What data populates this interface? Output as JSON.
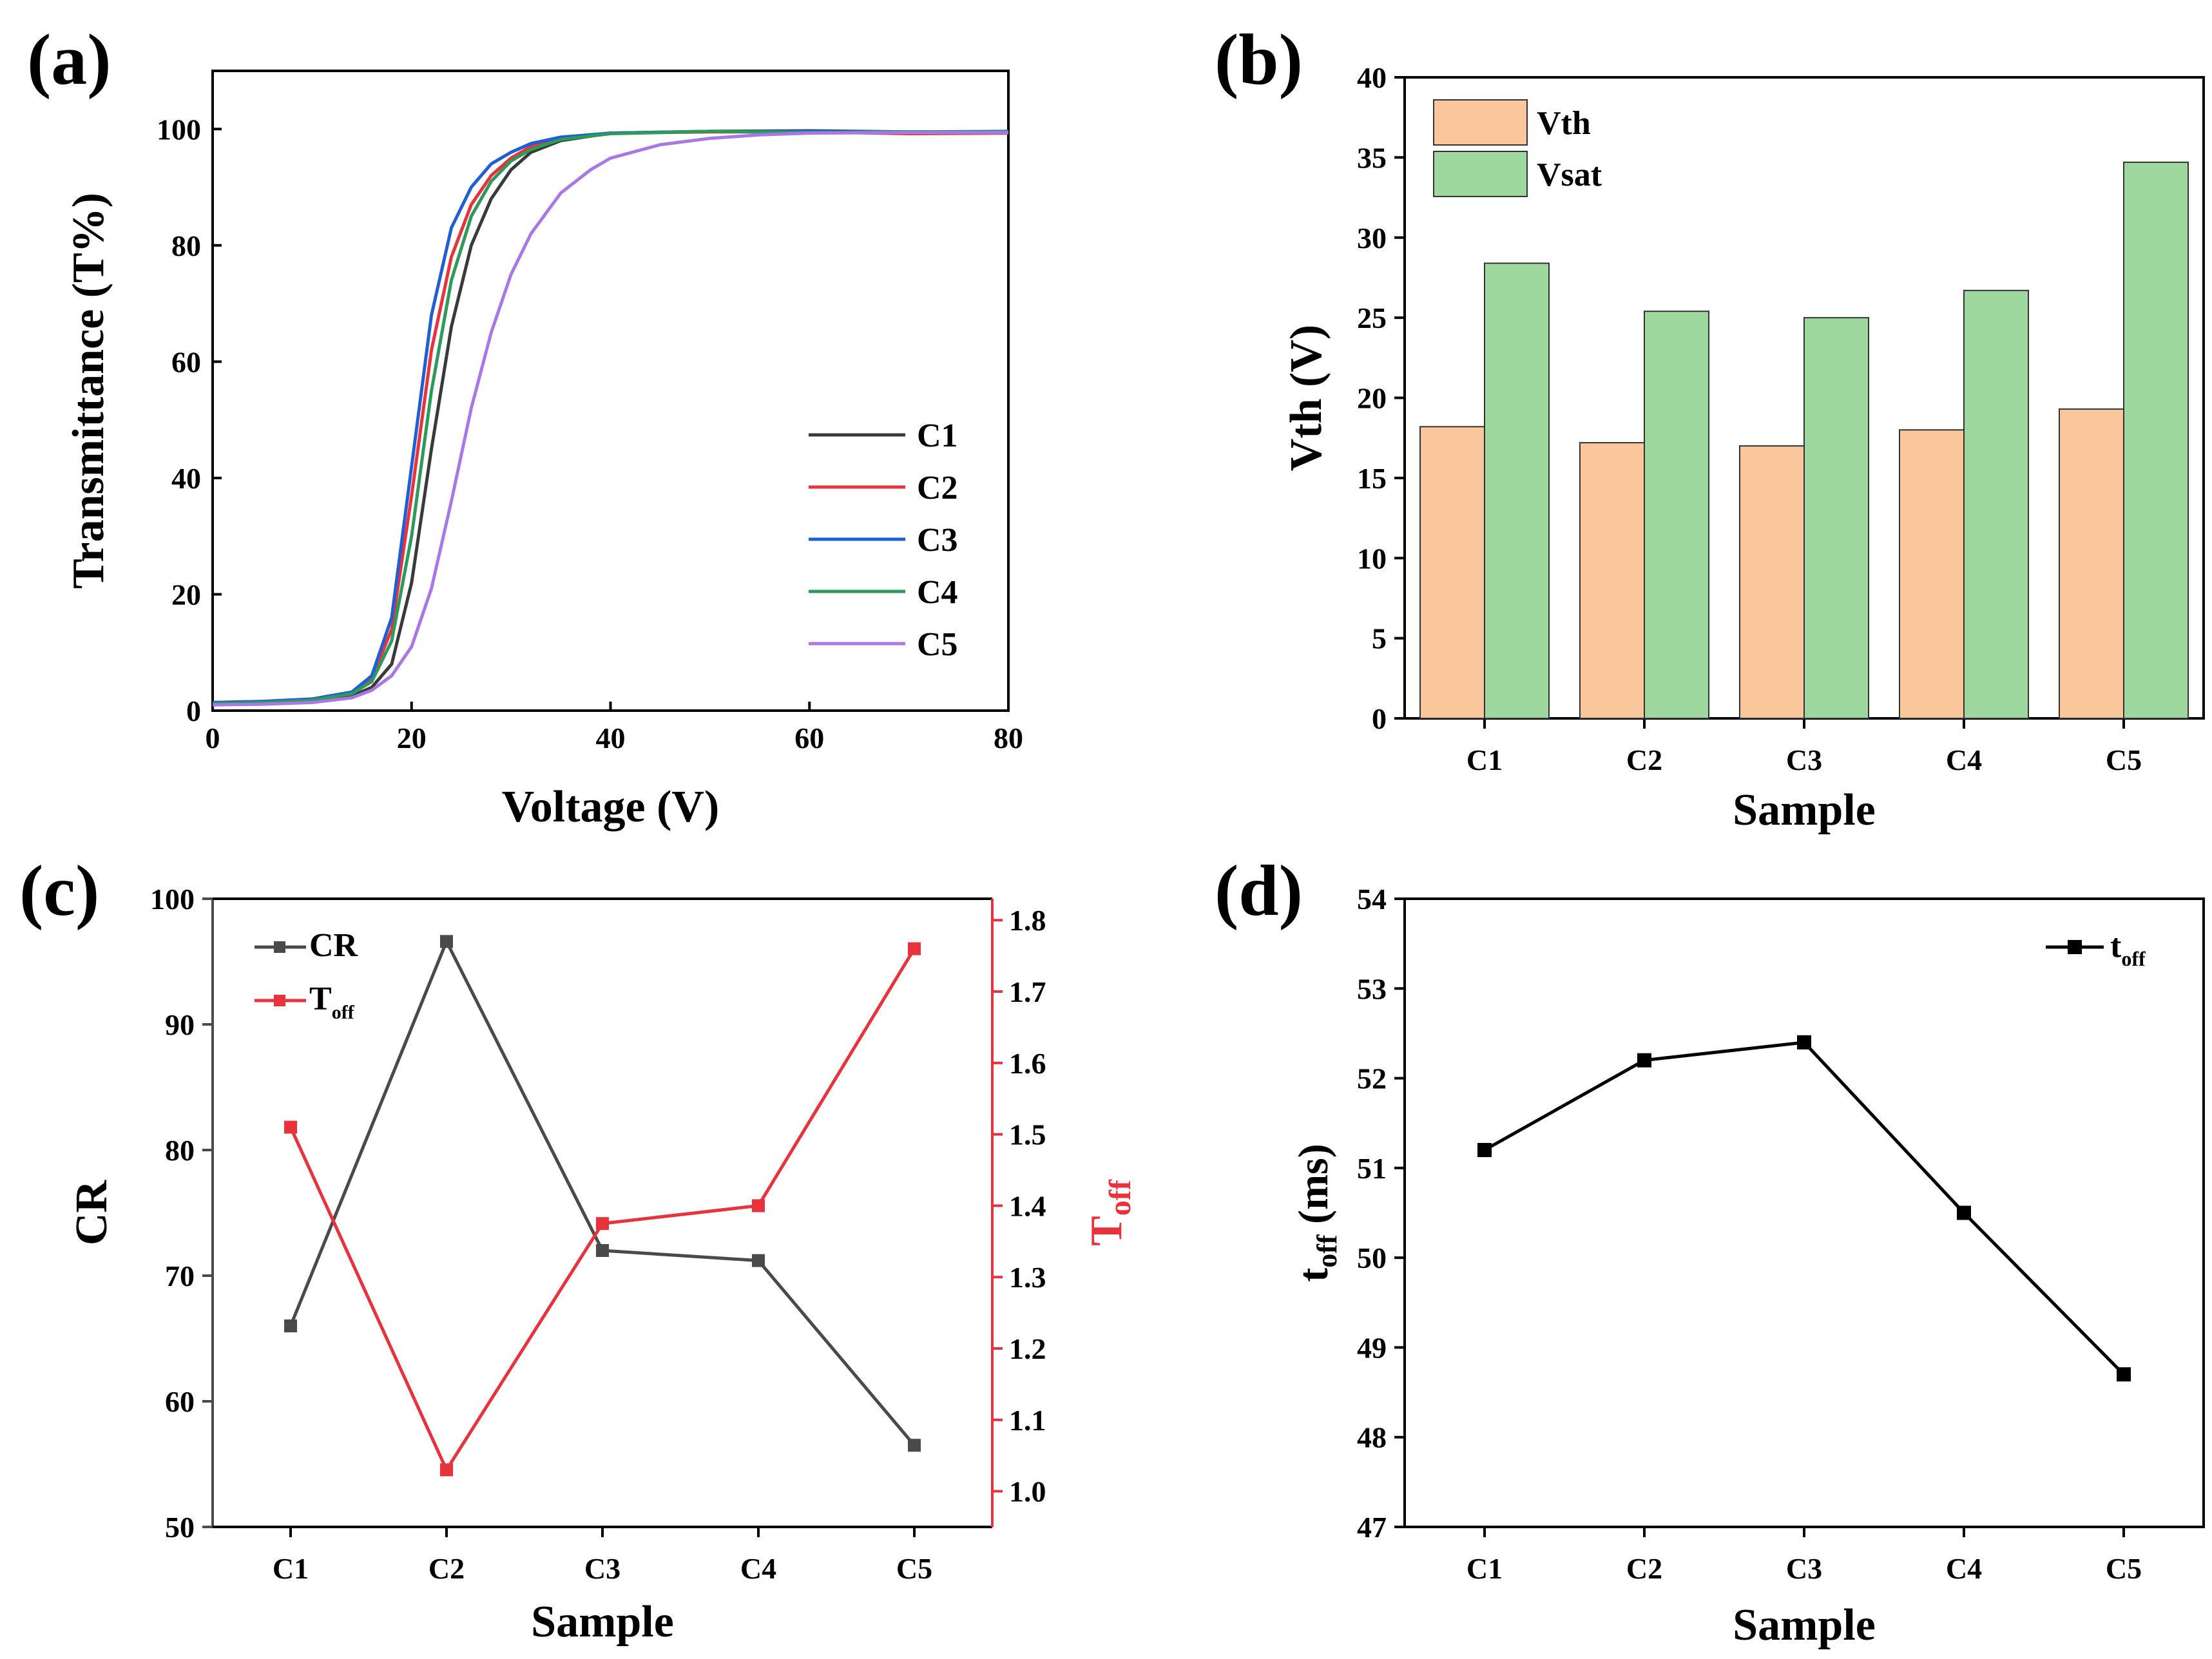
{
  "chart_data": [
    {
      "panel": "(a)",
      "type": "line",
      "xlabel": "Voltage (V)",
      "ylabel": "Transmittance (T%)",
      "xlim": [
        0,
        80
      ],
      "ylim": [
        0,
        110
      ],
      "xticks": [
        0,
        20,
        40,
        60,
        80
      ],
      "yticks": [
        0,
        20,
        40,
        60,
        80,
        100
      ],
      "legend_position": "bottom-right",
      "series": [
        {
          "name": "C1",
          "color": "#3a3a3a",
          "x": [
            0,
            5,
            10,
            14,
            16,
            18,
            20,
            22,
            24,
            26,
            28,
            30,
            32,
            35,
            40,
            50,
            60,
            70,
            80
          ],
          "y": [
            1,
            1.2,
            1.6,
            2.5,
            4,
            8,
            22,
            45,
            66,
            80,
            88,
            93,
            96,
            98,
            99.3,
            99.6,
            99.7,
            99.5,
            99.5
          ]
        },
        {
          "name": "C2",
          "color": "#e8323c",
          "x": [
            0,
            5,
            10,
            14,
            16,
            18,
            20,
            22,
            24,
            26,
            28,
            30,
            32,
            35,
            40,
            50,
            60,
            70,
            80
          ],
          "y": [
            1.3,
            1.5,
            1.9,
            3,
            5.5,
            14,
            37,
            62,
            78,
            87,
            92,
            95,
            97,
            98.5,
            99.3,
            99.5,
            99.5,
            99.2,
            99.3
          ]
        },
        {
          "name": "C3",
          "color": "#1f5fd6",
          "x": [
            0,
            5,
            10,
            14,
            16,
            18,
            20,
            22,
            24,
            26,
            28,
            30,
            32,
            35,
            40,
            50,
            60,
            70,
            80
          ],
          "y": [
            1.4,
            1.6,
            2,
            3.2,
            6,
            16,
            42,
            68,
            83,
            90,
            94,
            96,
            97.5,
            98.6,
            99.3,
            99.6,
            99.6,
            99.5,
            99.6
          ]
        },
        {
          "name": "C4",
          "color": "#2e9a5a",
          "x": [
            0,
            5,
            10,
            14,
            16,
            18,
            20,
            22,
            24,
            26,
            28,
            30,
            32,
            35,
            40,
            50,
            60,
            70,
            80
          ],
          "y": [
            1.2,
            1.4,
            1.8,
            2.9,
            5,
            12,
            30,
            55,
            74,
            85,
            91,
            94.5,
            96.5,
            98.2,
            99.2,
            99.6,
            99.4,
            99.5,
            99.5
          ]
        },
        {
          "name": "C5",
          "color": "#a878e6",
          "x": [
            0,
            5,
            10,
            14,
            16,
            18,
            20,
            22,
            24,
            26,
            28,
            30,
            32,
            35,
            38,
            40,
            45,
            50,
            55,
            60,
            70,
            80
          ],
          "y": [
            1,
            1.1,
            1.4,
            2.2,
            3.5,
            6,
            11,
            21,
            36,
            52,
            65,
            75,
            82,
            89,
            93,
            95,
            97.3,
            98.4,
            99,
            99.3,
            99.4,
            99.4
          ]
        }
      ]
    },
    {
      "panel": "(b)",
      "type": "bar",
      "xlabel": "Sample",
      "ylabel": "Vth (V)",
      "ylim": [
        0,
        40
      ],
      "yticks": [
        0,
        5,
        10,
        15,
        20,
        25,
        30,
        35,
        40
      ],
      "categories": [
        "C1",
        "C2",
        "C3",
        "C4",
        "C5"
      ],
      "legend_position": "top-left",
      "series": [
        {
          "name": "Vth",
          "color": "#f9c79b",
          "values": [
            18.2,
            17.2,
            17.0,
            18.0,
            19.3
          ]
        },
        {
          "name": "Vsat",
          "color": "#9fd89e",
          "values": [
            28.4,
            25.4,
            25.0,
            26.7,
            34.7
          ]
        }
      ]
    },
    {
      "panel": "(c)",
      "type": "line",
      "xlabel": "Sample",
      "ylabel": "CR",
      "ylabel_right": "T",
      "ylabel_right_sub": "off",
      "categories": [
        "C1",
        "C2",
        "C3",
        "C4",
        "C5"
      ],
      "ylim": [
        50,
        100
      ],
      "yticks": [
        50,
        60,
        70,
        80,
        90,
        100
      ],
      "ylim_right": [
        0.95,
        1.83
      ],
      "yticks_right": [
        "1.0",
        "1.1",
        "1.2",
        "1.3",
        "1.4",
        "1.5",
        "1.6",
        "1.7",
        "1.8"
      ],
      "legend_position": "top-left",
      "series": [
        {
          "name": "CR",
          "sub": "",
          "axis": "left",
          "color": "#4a4a4a",
          "values": [
            66.0,
            96.6,
            72.0,
            71.2,
            56.5
          ]
        },
        {
          "name": "T",
          "sub": "off",
          "axis": "right",
          "color": "#e8323c",
          "values": [
            1.51,
            1.03,
            1.375,
            1.4,
            1.76
          ]
        }
      ]
    },
    {
      "panel": "(d)",
      "type": "line",
      "xlabel": "Sample",
      "ylabel": "t",
      "ylabel_sub": "off",
      "ylabel_rest": " (ms)",
      "categories": [
        "C1",
        "C2",
        "C3",
        "C4",
        "C5"
      ],
      "ylim": [
        47,
        54
      ],
      "yticks": [
        47,
        48,
        49,
        50,
        51,
        52,
        53,
        54
      ],
      "legend_position": "top-right",
      "series": [
        {
          "name": "t",
          "sub": "off",
          "color": "#000000",
          "values": [
            51.2,
            52.2,
            52.4,
            50.5,
            48.7
          ]
        }
      ]
    }
  ]
}
